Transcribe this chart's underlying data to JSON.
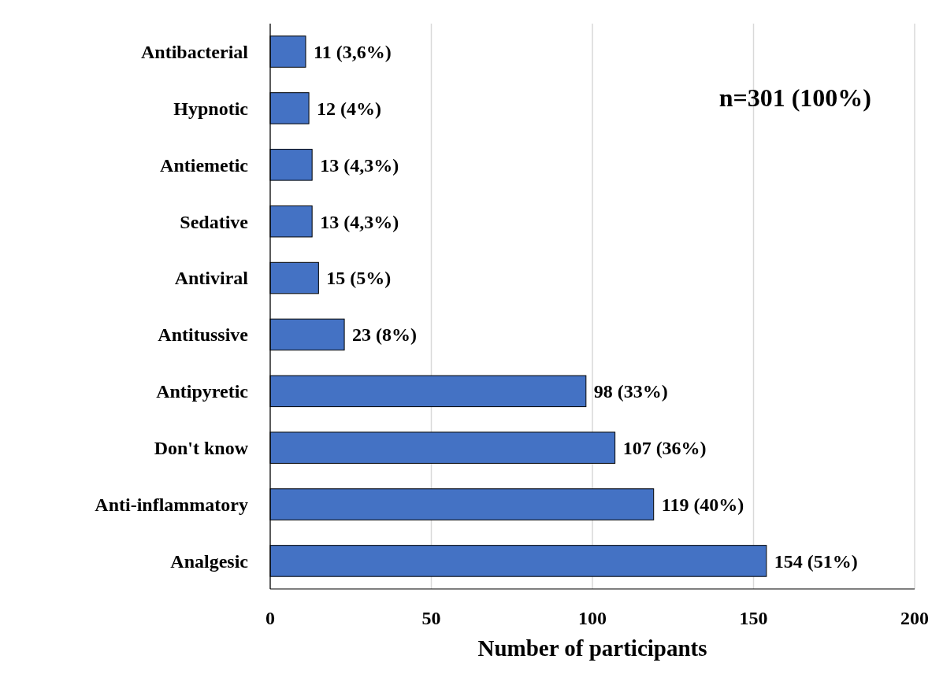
{
  "chart_data": {
    "type": "bar",
    "orientation": "horizontal",
    "xlabel": "Number of participants",
    "categories": [
      "Antibacterial",
      "Hypnotic",
      "Antiemetic",
      "Sedative",
      "Antiviral",
      "Antitussive",
      "Antipyretic",
      "Don't know",
      "Anti-inflammatory",
      "Analgesic"
    ],
    "values": [
      11,
      12,
      13,
      13,
      15,
      23,
      98,
      107,
      119,
      154
    ],
    "value_labels": [
      "11 (3,6%)",
      "12 (4%)",
      "13 (4,3%)",
      "13 (4,3%)",
      "15 (5%)",
      "23 (8%)",
      "98 (33%)",
      "107 (36%)",
      "119 (40%)",
      "154 (51%)"
    ],
    "color": "#4472c4",
    "xlim": [
      0,
      200
    ],
    "xticks": [
      0,
      50,
      100,
      150,
      200
    ],
    "grid": "x",
    "annotations": [
      "n=301 (100%)"
    ]
  }
}
